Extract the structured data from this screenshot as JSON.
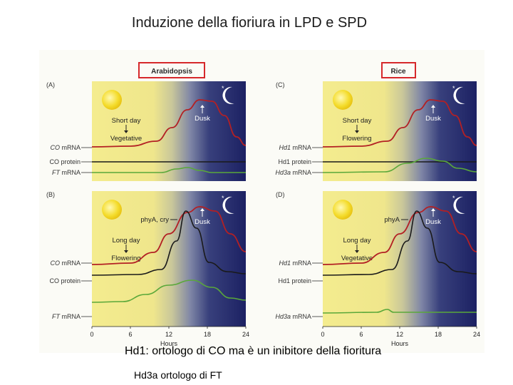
{
  "title": "Induzione della fioriura in LPD e SPD",
  "organisms": {
    "left": "Arabidopsis",
    "right": "Rice"
  },
  "panels": [
    {
      "id": "A",
      "letter": "(A)",
      "condition": "Short day",
      "outcome": "Vegetative",
      "photoreceptor": "",
      "rows": [
        {
          "label": "CO mRNA",
          "italic_prefix": "CO"
        },
        {
          "label": "CO protein",
          "italic_prefix": ""
        },
        {
          "label": "FT mRNA",
          "italic_prefix": "FT"
        }
      ]
    },
    {
      "id": "B",
      "letter": "(B)",
      "condition": "Long day",
      "outcome": "Flowering",
      "photoreceptor": "phyA, cry",
      "rows": [
        {
          "label": "CO mRNA",
          "italic_prefix": "CO"
        },
        {
          "label": "CO protein",
          "italic_prefix": ""
        },
        {
          "label": "FT mRNA",
          "italic_prefix": "FT"
        }
      ]
    },
    {
      "id": "C",
      "letter": "(C)",
      "condition": "Short day",
      "outcome": "Flowering",
      "photoreceptor": "",
      "rows": [
        {
          "label": "Hd1 mRNA",
          "italic_prefix": "Hd1"
        },
        {
          "label": "Hd1 protein",
          "italic_prefix": ""
        },
        {
          "label": "Hd3a mRNA",
          "italic_prefix": "Hd3a"
        }
      ]
    },
    {
      "id": "D",
      "letter": "(D)",
      "condition": "Long day",
      "outcome": "Vegetative",
      "photoreceptor": "phyA",
      "rows": [
        {
          "label": "Hd1 mRNA",
          "italic_prefix": "Hd1"
        },
        {
          "label": "Hd1 protein",
          "italic_prefix": ""
        },
        {
          "label": "Hd3a mRNA",
          "italic_prefix": "Hd3a"
        }
      ]
    }
  ],
  "dusk_label": "Dusk",
  "x_axis": {
    "ticks": [
      "0",
      "6",
      "12",
      "18",
      "24"
    ],
    "label": "Hours"
  },
  "colors": {
    "day": "#f3e98a",
    "night": "#1f2466",
    "mrna": "#b32024",
    "protein": "#1a1a1a",
    "ft": "#5aa83a"
  },
  "notes": [
    "Hd1: ortologo di CO ma è un inibitore della fioritura",
    "Hd3a ortologo di FT"
  ]
}
